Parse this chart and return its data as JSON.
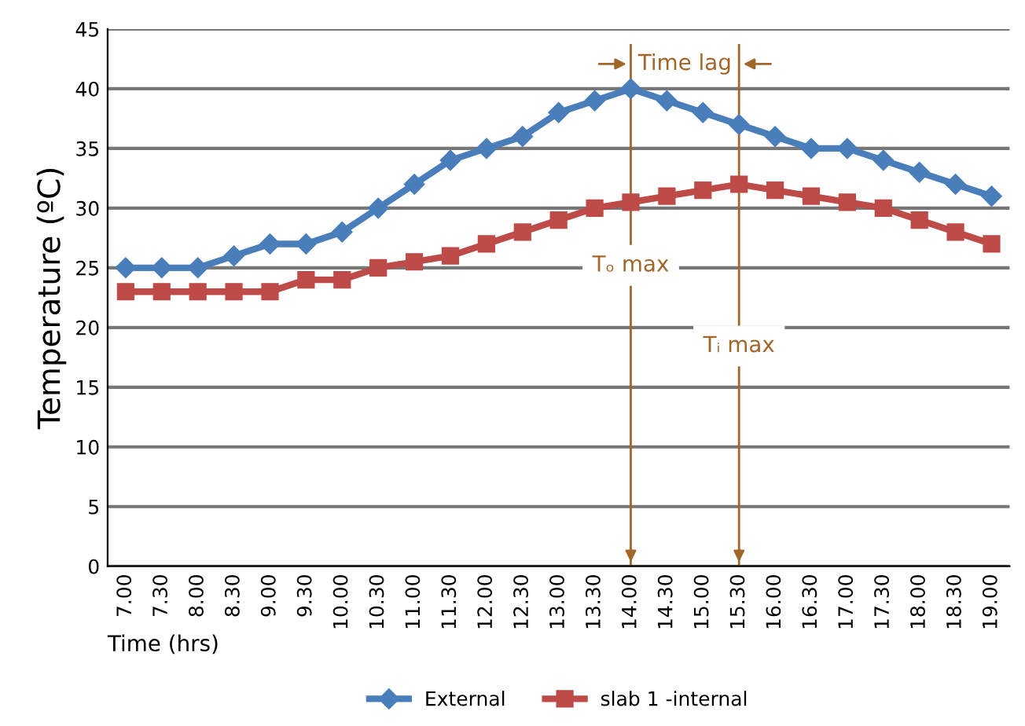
{
  "chart_data": {
    "type": "line",
    "categories": [
      "7.00",
      "7.30",
      "8.00",
      "8.30",
      "9.00",
      "9.30",
      "10.00",
      "10.30",
      "11.00",
      "11.30",
      "12.00",
      "12.30",
      "13.00",
      "13.30",
      "14.00",
      "14.30",
      "15.00",
      "15.30",
      "16.00",
      "16.30",
      "17.00",
      "17.30",
      "18.00",
      "18.30",
      "19.00"
    ],
    "series": [
      {
        "name": "External",
        "color": "#4a7ebb",
        "marker": "diamond",
        "values": [
          25,
          25,
          25,
          26,
          27,
          27,
          28,
          30,
          32,
          34,
          35,
          36,
          38,
          39,
          40,
          39,
          38,
          37,
          36,
          35,
          35,
          34,
          33,
          32,
          31
        ]
      },
      {
        "name": "slab 1 -internal",
        "color": "#be4b48",
        "marker": "square",
        "values": [
          23,
          23,
          23,
          23,
          23,
          24,
          24,
          25,
          25.5,
          26,
          27,
          28,
          29,
          30,
          30.5,
          31,
          31.5,
          32,
          31.5,
          31,
          30.5,
          30,
          29,
          28,
          27
        ]
      }
    ],
    "xlabel": "Time (hrs)",
    "ylabel": "Temperature (ºC)",
    "ylim": [
      0,
      45
    ],
    "yticks": [
      0,
      5,
      10,
      15,
      20,
      25,
      30,
      35,
      40,
      45
    ],
    "grid": "y",
    "legend": "bottom",
    "annotations": [
      "Time lag"
    ],
    "ref_lines": [
      {
        "axis": "x",
        "value": "14.00",
        "label": "Tₒ max",
        "color": "#a0662a"
      },
      {
        "axis": "x",
        "value": "15.30",
        "label": "Tᵢ max",
        "color": "#a0662a"
      }
    ]
  }
}
